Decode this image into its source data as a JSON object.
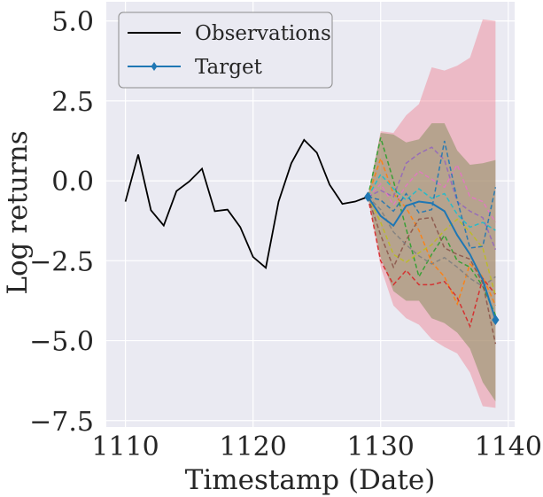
{
  "chart_data": {
    "type": "line",
    "title": "",
    "xlabel": "Timestamp (Date)",
    "ylabel": "Log returns",
    "xlim": [
      1108.5,
      1140.5
    ],
    "ylim": [
      -7.7,
      5.6
    ],
    "x_ticks": [
      {
        "value": 1110,
        "label": "1110"
      },
      {
        "value": 1120,
        "label": "1120"
      },
      {
        "value": 1130,
        "label": "1130"
      },
      {
        "value": 1140,
        "label": "1140"
      }
    ],
    "y_ticks": [
      {
        "value": 5.0,
        "label": "5.0"
      },
      {
        "value": 2.5,
        "label": "2.5"
      },
      {
        "value": 0.0,
        "label": "0.0"
      },
      {
        "value": -2.5,
        "label": "−2.5"
      },
      {
        "value": -5.0,
        "label": "−5.0"
      },
      {
        "value": -7.5,
        "label": "−7.5"
      }
    ],
    "grid": true,
    "legend": {
      "position": "top-left",
      "entries": [
        {
          "label": "Observations",
          "color": "#000000",
          "marker": "none"
        },
        {
          "label": "Target",
          "color": "#1f77b4",
          "marker": "diamond"
        }
      ]
    },
    "observations": {
      "name": "Observations",
      "color": "#000000",
      "x": [
        1110,
        1111,
        1112,
        1113,
        1114,
        1115,
        1116,
        1117,
        1118,
        1119,
        1120,
        1121,
        1122,
        1123,
        1124,
        1125,
        1126,
        1127,
        1128,
        1129
      ],
      "y": [
        -0.65,
        0.82,
        -0.92,
        -1.4,
        -0.32,
        -0.02,
        0.38,
        -0.95,
        -0.9,
        -1.45,
        -2.38,
        -2.72,
        -0.65,
        0.55,
        1.28,
        0.88,
        -0.12,
        -0.72,
        -0.65,
        -0.5
      ]
    },
    "target": {
      "name": "Target",
      "color": "#1f77b4",
      "x": [
        1129,
        1130,
        1131,
        1132,
        1133,
        1134,
        1135,
        1136,
        1137,
        1138,
        1139
      ],
      "y": [
        -0.5,
        -1.1,
        -1.4,
        -0.78,
        -0.65,
        -0.7,
        -0.95,
        -1.7,
        -2.3,
        -3.1,
        -4.35
      ]
    },
    "bands": [
      {
        "name": "outer-interval",
        "color": "#f08090",
        "opacity": 0.45,
        "x": [
          1129,
          1130,
          1131,
          1132,
          1133,
          1134,
          1135,
          1136,
          1137,
          1138,
          1139
        ],
        "upper": [
          -0.5,
          1.55,
          1.5,
          2.05,
          2.4,
          3.55,
          3.45,
          3.6,
          3.85,
          5.05,
          5.0
        ],
        "lower": [
          -0.5,
          -2.7,
          -3.9,
          -4.3,
          -4.5,
          -4.95,
          -5.2,
          -5.4,
          -6.0,
          -7.05,
          -7.1
        ]
      },
      {
        "name": "inner-interval",
        "color": "#8a9060",
        "opacity": 0.55,
        "x": [
          1129,
          1130,
          1131,
          1132,
          1133,
          1134,
          1135,
          1136,
          1137,
          1138,
          1139
        ],
        "upper": [
          -0.5,
          1.5,
          1.45,
          1.2,
          1.3,
          1.8,
          1.8,
          0.95,
          0.5,
          0.55,
          0.65
        ],
        "lower": [
          -0.5,
          -2.4,
          -3.45,
          -3.75,
          -3.75,
          -4.3,
          -4.45,
          -4.75,
          -5.25,
          -6.3,
          -6.9
        ]
      }
    ],
    "samples": [
      {
        "name": "sample-1",
        "color": "#2ca02c",
        "x": [
          1129,
          1130,
          1131,
          1132,
          1133,
          1134,
          1135,
          1136,
          1137,
          1138,
          1139
        ],
        "y": [
          -0.5,
          1.35,
          0.0,
          -1.5,
          -3.0,
          -2.3,
          -1.7,
          -2.5,
          -2.7,
          -3.3,
          -4.2
        ]
      },
      {
        "name": "sample-2",
        "color": "#ff7f0e",
        "x": [
          1129,
          1130,
          1131,
          1132,
          1133,
          1134,
          1135,
          1136,
          1137,
          1138,
          1139
        ],
        "y": [
          -0.5,
          0.7,
          -0.4,
          -0.85,
          -1.55,
          -2.55,
          -3.0,
          -3.85,
          -2.6,
          -3.0,
          -3.9
        ]
      },
      {
        "name": "sample-3",
        "color": "#d62728",
        "x": [
          1129,
          1130,
          1131,
          1132,
          1133,
          1134,
          1135,
          1136,
          1137,
          1138,
          1139
        ],
        "y": [
          -0.5,
          -2.5,
          -3.25,
          -2.8,
          -3.25,
          -3.25,
          -3.15,
          -3.65,
          -4.55,
          -3.05,
          -3.55
        ]
      },
      {
        "name": "sample-4",
        "color": "#9467bd",
        "x": [
          1129,
          1130,
          1131,
          1132,
          1133,
          1134,
          1135,
          1136,
          1137,
          1138,
          1139
        ],
        "y": [
          -0.5,
          -0.3,
          -0.5,
          0.55,
          0.85,
          1.05,
          0.65,
          -0.65,
          -0.95,
          -1.15,
          -2.15
        ]
      },
      {
        "name": "sample-5",
        "color": "#8c564b",
        "x": [
          1129,
          1130,
          1131,
          1132,
          1133,
          1134,
          1135,
          1136,
          1137,
          1138,
          1139
        ],
        "y": [
          -0.5,
          -1.7,
          -2.7,
          -1.85,
          -1.2,
          -1.15,
          -2.1,
          -2.3,
          -2.45,
          -3.2,
          -5.1
        ]
      },
      {
        "name": "sample-6",
        "color": "#e377c2",
        "x": [
          1129,
          1130,
          1131,
          1132,
          1133,
          1134,
          1135,
          1136,
          1137,
          1138,
          1139
        ],
        "y": [
          -0.5,
          -0.1,
          -0.75,
          -0.15,
          0.3,
          0.05,
          -0.2,
          0.5,
          -0.5,
          -0.65,
          -1.3
        ]
      },
      {
        "name": "sample-7",
        "color": "#7f7f7f",
        "x": [
          1129,
          1130,
          1131,
          1132,
          1133,
          1134,
          1135,
          1136,
          1137,
          1138,
          1139
        ],
        "y": [
          -0.5,
          -0.9,
          -1.6,
          -2.0,
          -2.35,
          -2.6,
          -2.4,
          -2.7,
          -3.05,
          -3.3,
          -3.0
        ]
      },
      {
        "name": "sample-8",
        "color": "#bcbd22",
        "x": [
          1129,
          1130,
          1131,
          1132,
          1133,
          1134,
          1135,
          1136,
          1137,
          1138,
          1139
        ],
        "y": [
          -0.5,
          -1.3,
          -2.3,
          -2.55,
          -2.25,
          -2.0,
          -1.55,
          -1.2,
          -1.6,
          -2.1,
          -3.6
        ]
      },
      {
        "name": "sample-9",
        "color": "#17becf",
        "x": [
          1129,
          1130,
          1131,
          1132,
          1133,
          1134,
          1135,
          1136,
          1137,
          1138,
          1139
        ],
        "y": [
          -0.5,
          0.2,
          -0.25,
          -0.6,
          -0.25,
          -0.55,
          -0.4,
          -1.05,
          -1.45,
          -1.3,
          -1.55
        ]
      },
      {
        "name": "sample-10",
        "color": "#1f77b4",
        "x": [
          1129,
          1130,
          1131,
          1132,
          1133,
          1134,
          1135,
          1136,
          1137,
          1138,
          1139
        ],
        "y": [
          -0.5,
          -0.6,
          -0.95,
          -0.4,
          -1.0,
          -0.9,
          1.25,
          -0.6,
          -2.1,
          -2.05,
          -0.2
        ]
      }
    ]
  }
}
